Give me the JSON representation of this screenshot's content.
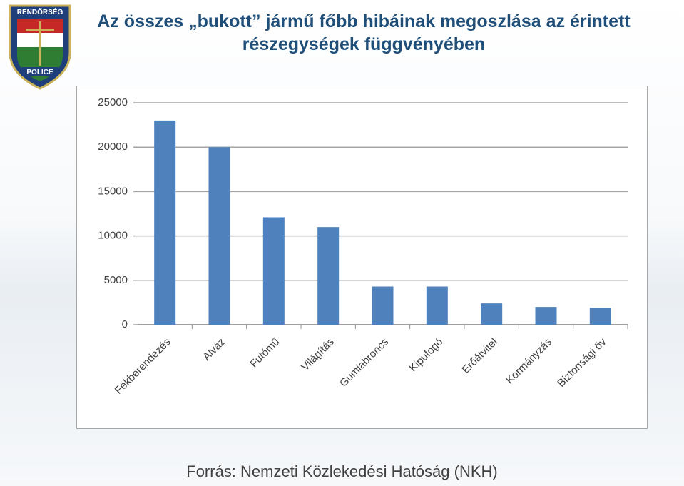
{
  "logo": {
    "top": "RENDŐRSÉG",
    "bottom": "POLICE"
  },
  "chart_data": {
    "type": "bar",
    "title": "Az összes „bukott” jármű főbb hibáinak megoszlása az érintett részegységek függvényében",
    "categories": [
      "Fékberendezés",
      "Alváz",
      "Futómű",
      "Világítás",
      "Gumiabroncs",
      "Kipufogó",
      "Erőátvitel",
      "Kormányzás",
      "Biztonsági öv"
    ],
    "values": [
      23000,
      20000,
      12100,
      11000,
      4300,
      4300,
      2400,
      2000,
      1900
    ],
    "color": "#4f81bd",
    "ylim": [
      0,
      25000
    ],
    "yticks": [
      0,
      5000,
      10000,
      15000,
      20000,
      25000
    ],
    "grid": true
  },
  "source": "Forrás: Nemzeti Közlekedési Hatóság (NKH)"
}
